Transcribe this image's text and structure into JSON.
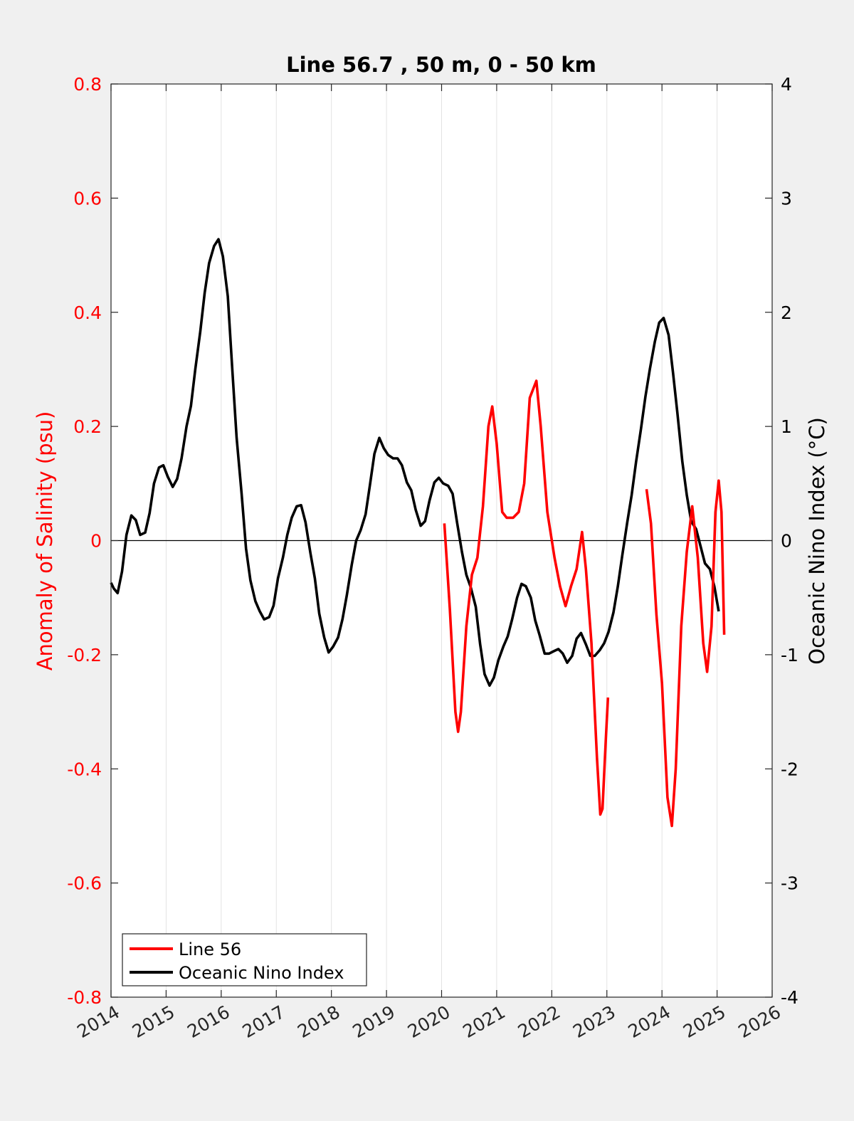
{
  "chart_data": {
    "type": "line",
    "title": "Line 56.7 , 50 m, 0 - 50 km",
    "xlim": [
      2014,
      2026
    ],
    "xticks": [
      "2014",
      "2015",
      "2016",
      "2017",
      "2018",
      "2019",
      "2020",
      "2021",
      "2022",
      "2023",
      "2024",
      "2025",
      "2026"
    ],
    "y_left": {
      "label": "Anomaly of Salinity (psu)",
      "lim": [
        -0.8,
        0.8
      ],
      "ticks": [
        "0.8",
        "0.6",
        "0.4",
        "0.2",
        "0",
        "-0.2",
        "-0.4",
        "-0.6",
        "-0.8"
      ],
      "color": "#ff0000"
    },
    "y_right": {
      "label": "Oceanic Nino Index (°C)",
      "lim": [
        -4,
        4
      ],
      "ticks": [
        "4",
        "3",
        "2",
        "1",
        "0",
        "-1",
        "-2",
        "-3",
        "-4"
      ],
      "color": "#000000"
    },
    "grid": "vertical",
    "legend_position": "bottom-left",
    "series": [
      {
        "name": "Line 56",
        "axis": "left",
        "color": "#ff0000",
        "segments": [
          [
            [
              2020.05,
              0.03
            ],
            [
              2020.15,
              -0.12
            ],
            [
              2020.25,
              -0.3
            ],
            [
              2020.3,
              -0.335
            ],
            [
              2020.35,
              -0.3
            ],
            [
              2020.45,
              -0.15
            ],
            [
              2020.55,
              -0.06
            ],
            [
              2020.65,
              -0.03
            ],
            [
              2020.75,
              0.06
            ],
            [
              2020.85,
              0.2
            ],
            [
              2020.92,
              0.235
            ],
            [
              2021.0,
              0.17
            ],
            [
              2021.1,
              0.05
            ],
            [
              2021.18,
              0.04
            ],
            [
              2021.3,
              0.04
            ],
            [
              2021.4,
              0.05
            ],
            [
              2021.5,
              0.1
            ],
            [
              2021.6,
              0.25
            ],
            [
              2021.72,
              0.28
            ],
            [
              2021.8,
              0.2
            ],
            [
              2021.92,
              0.05
            ],
            [
              2022.05,
              -0.03
            ],
            [
              2022.15,
              -0.08
            ],
            [
              2022.25,
              -0.115
            ],
            [
              2022.35,
              -0.08
            ],
            [
              2022.45,
              -0.05
            ],
            [
              2022.55,
              0.015
            ],
            [
              2022.62,
              -0.05
            ],
            [
              2022.72,
              -0.18
            ],
            [
              2022.82,
              -0.38
            ],
            [
              2022.88,
              -0.48
            ],
            [
              2022.92,
              -0.47
            ],
            [
              2022.98,
              -0.35
            ],
            [
              2023.02,
              -0.275
            ]
          ],
          [
            [
              2023.72,
              0.09
            ],
            [
              2023.8,
              0.03
            ],
            [
              2023.9,
              -0.13
            ],
            [
              2024.0,
              -0.25
            ],
            [
              2024.1,
              -0.45
            ],
            [
              2024.18,
              -0.5
            ],
            [
              2024.25,
              -0.4
            ],
            [
              2024.35,
              -0.15
            ],
            [
              2024.45,
              -0.02
            ],
            [
              2024.55,
              0.06
            ],
            [
              2024.65,
              -0.03
            ],
            [
              2024.75,
              -0.18
            ],
            [
              2024.82,
              -0.23
            ],
            [
              2024.9,
              -0.15
            ],
            [
              2024.97,
              0.05
            ],
            [
              2025.03,
              0.105
            ],
            [
              2025.08,
              0.05
            ],
            [
              2025.13,
              -0.165
            ]
          ]
        ]
      },
      {
        "name": "Oceanic Nino Index",
        "axis": "right",
        "color": "#000000",
        "points": [
          [
            2014.0,
            -0.37
          ],
          [
            2014.05,
            -0.42
          ],
          [
            2014.12,
            -0.46
          ],
          [
            2014.2,
            -0.27
          ],
          [
            2014.28,
            0.05
          ],
          [
            2014.37,
            0.22
          ],
          [
            2014.45,
            0.18
          ],
          [
            2014.53,
            0.05
          ],
          [
            2014.62,
            0.07
          ],
          [
            2014.7,
            0.24
          ],
          [
            2014.78,
            0.5
          ],
          [
            2014.87,
            0.64
          ],
          [
            2014.95,
            0.66
          ],
          [
            2015.03,
            0.56
          ],
          [
            2015.12,
            0.47
          ],
          [
            2015.2,
            0.54
          ],
          [
            2015.28,
            0.72
          ],
          [
            2015.37,
            1.0
          ],
          [
            2015.45,
            1.18
          ],
          [
            2015.53,
            1.5
          ],
          [
            2015.62,
            1.83
          ],
          [
            2015.7,
            2.17
          ],
          [
            2015.78,
            2.43
          ],
          [
            2015.87,
            2.58
          ],
          [
            2015.95,
            2.64
          ],
          [
            2016.03,
            2.49
          ],
          [
            2016.12,
            2.14
          ],
          [
            2016.2,
            1.51
          ],
          [
            2016.28,
            0.9
          ],
          [
            2016.37,
            0.41
          ],
          [
            2016.45,
            -0.07
          ],
          [
            2016.53,
            -0.35
          ],
          [
            2016.62,
            -0.53
          ],
          [
            2016.7,
            -0.62
          ],
          [
            2016.78,
            -0.69
          ],
          [
            2016.87,
            -0.67
          ],
          [
            2016.95,
            -0.57
          ],
          [
            2017.03,
            -0.33
          ],
          [
            2017.12,
            -0.15
          ],
          [
            2017.2,
            0.05
          ],
          [
            2017.28,
            0.2
          ],
          [
            2017.37,
            0.3
          ],
          [
            2017.45,
            0.31
          ],
          [
            2017.53,
            0.16
          ],
          [
            2017.62,
            -0.11
          ],
          [
            2017.7,
            -0.33
          ],
          [
            2017.78,
            -0.64
          ],
          [
            2017.87,
            -0.85
          ],
          [
            2017.95,
            -0.98
          ],
          [
            2018.03,
            -0.93
          ],
          [
            2018.12,
            -0.85
          ],
          [
            2018.2,
            -0.69
          ],
          [
            2018.28,
            -0.48
          ],
          [
            2018.37,
            -0.21
          ],
          [
            2018.45,
            0.0
          ],
          [
            2018.53,
            0.09
          ],
          [
            2018.62,
            0.23
          ],
          [
            2018.7,
            0.49
          ],
          [
            2018.78,
            0.76
          ],
          [
            2018.87,
            0.9
          ],
          [
            2018.95,
            0.81
          ],
          [
            2019.03,
            0.75
          ],
          [
            2019.12,
            0.72
          ],
          [
            2019.2,
            0.72
          ],
          [
            2019.28,
            0.66
          ],
          [
            2019.37,
            0.51
          ],
          [
            2019.45,
            0.44
          ],
          [
            2019.53,
            0.27
          ],
          [
            2019.62,
            0.13
          ],
          [
            2019.7,
            0.17
          ],
          [
            2019.78,
            0.35
          ],
          [
            2019.87,
            0.51
          ],
          [
            2019.95,
            0.55
          ],
          [
            2020.03,
            0.5
          ],
          [
            2020.12,
            0.48
          ],
          [
            2020.2,
            0.41
          ],
          [
            2020.28,
            0.16
          ],
          [
            2020.37,
            -0.1
          ],
          [
            2020.45,
            -0.3
          ],
          [
            2020.53,
            -0.41
          ],
          [
            2020.62,
            -0.58
          ],
          [
            2020.7,
            -0.91
          ],
          [
            2020.78,
            -1.17
          ],
          [
            2020.87,
            -1.27
          ],
          [
            2020.95,
            -1.2
          ],
          [
            2021.03,
            -1.05
          ],
          [
            2021.12,
            -0.93
          ],
          [
            2021.2,
            -0.84
          ],
          [
            2021.28,
            -0.69
          ],
          [
            2021.37,
            -0.5
          ],
          [
            2021.45,
            -0.38
          ],
          [
            2021.53,
            -0.4
          ],
          [
            2021.62,
            -0.5
          ],
          [
            2021.7,
            -0.7
          ],
          [
            2021.78,
            -0.83
          ],
          [
            2021.87,
            -0.99
          ],
          [
            2021.95,
            -0.99
          ],
          [
            2022.03,
            -0.97
          ],
          [
            2022.12,
            -0.95
          ],
          [
            2022.2,
            -0.99
          ],
          [
            2022.28,
            -1.07
          ],
          [
            2022.37,
            -1.01
          ],
          [
            2022.45,
            -0.86
          ],
          [
            2022.53,
            -0.81
          ],
          [
            2022.62,
            -0.91
          ],
          [
            2022.7,
            -1.01
          ],
          [
            2022.78,
            -1.01
          ],
          [
            2022.87,
            -0.96
          ],
          [
            2022.95,
            -0.9
          ],
          [
            2023.03,
            -0.8
          ],
          [
            2023.12,
            -0.63
          ],
          [
            2023.2,
            -0.4
          ],
          [
            2023.28,
            -0.13
          ],
          [
            2023.37,
            0.16
          ],
          [
            2023.45,
            0.4
          ],
          [
            2023.53,
            0.69
          ],
          [
            2023.62,
            0.98
          ],
          [
            2023.7,
            1.26
          ],
          [
            2023.78,
            1.5
          ],
          [
            2023.87,
            1.74
          ],
          [
            2023.95,
            1.91
          ],
          [
            2024.03,
            1.95
          ],
          [
            2024.12,
            1.8
          ],
          [
            2024.2,
            1.47
          ],
          [
            2024.28,
            1.12
          ],
          [
            2024.37,
            0.69
          ],
          [
            2024.45,
            0.4
          ],
          [
            2024.53,
            0.17
          ],
          [
            2024.62,
            0.1
          ],
          [
            2024.7,
            -0.05
          ],
          [
            2024.78,
            -0.2
          ],
          [
            2024.87,
            -0.25
          ],
          [
            2024.95,
            -0.4
          ],
          [
            2025.03,
            -0.62
          ]
        ]
      }
    ]
  }
}
